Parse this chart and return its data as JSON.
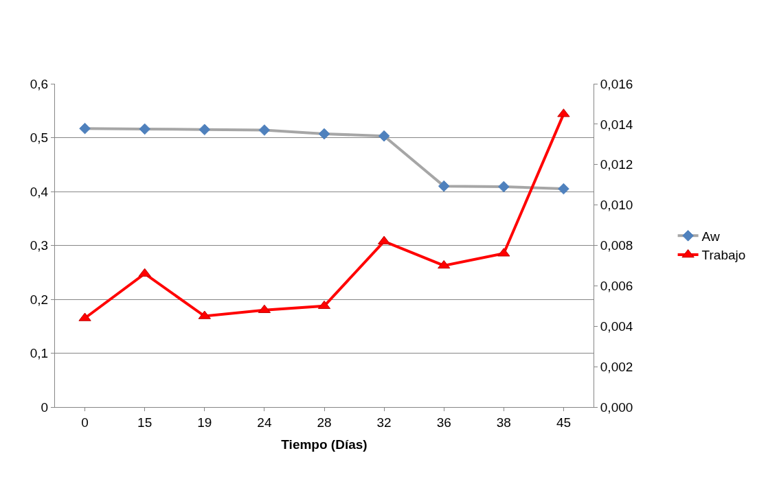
{
  "chart_data": {
    "type": "line",
    "xlabel": "Tiempo (Días)",
    "categories": [
      "0",
      "15",
      "19",
      "24",
      "28",
      "32",
      "36",
      "38",
      "45"
    ],
    "series": [
      {
        "name": "Aw",
        "color": "#4f81bd",
        "marker": "diamond",
        "values": [
          0.517,
          0.516,
          0.515,
          0.514,
          0.507,
          0.503,
          0.41,
          0.409,
          0.405
        ]
      },
      {
        "name": "Trabajo",
        "color": "#ff0000",
        "marker": "triangle",
        "axis": "y2",
        "values": [
          0.0044,
          0.0066,
          0.0045,
          0.0048,
          0.005,
          0.0082,
          0.007,
          0.0076,
          0.0145
        ]
      }
    ],
    "ylim": [
      0,
      0.6
    ],
    "yticks": [
      0,
      {
        "value": 0.1,
        "label": "0,1"
      },
      {
        "value": 0.2,
        "label": "0,2"
      },
      {
        "value": 0.3,
        "label": "0,3"
      },
      {
        "value": 0.4,
        "label": "0,4"
      },
      {
        "value": 0.5,
        "label": "0,5"
      },
      {
        "value": 0.6,
        "label": "0,6"
      }
    ],
    "y2lim": [
      0,
      0.016
    ],
    "y2ticks": [
      {
        "value": 0,
        "label": "0,000"
      },
      {
        "value": 0.002,
        "label": "0,002"
      },
      {
        "value": 0.004,
        "label": "0,004"
      },
      {
        "value": 0.006,
        "label": "0,006"
      },
      {
        "value": 0.008,
        "label": "0,008"
      },
      {
        "value": 0.01,
        "label": "0,010"
      },
      {
        "value": 0.012,
        "label": "0,012"
      },
      {
        "value": 0.014,
        "label": "0,014"
      },
      {
        "value": 0.016,
        "label": "0,016"
      }
    ],
    "grid": "y",
    "legend": "right"
  }
}
